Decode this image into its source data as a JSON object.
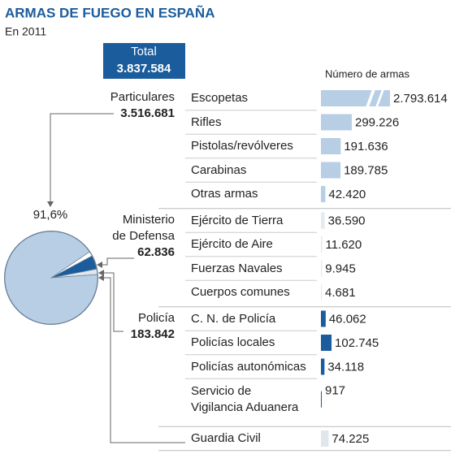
{
  "title": "ARMAS DE FUEGO EN ESPAÑA",
  "subtitle": "En 2011",
  "chart_data": {
    "type": "pie-bars",
    "total": {
      "name": "Total",
      "value": 3837584,
      "value_label": "3.837.584"
    },
    "value_axis_label": "Número de armas",
    "pie_annotation": "91,6%",
    "xlim": [
      0,
      1260000
    ],
    "groups": [
      {
        "name": "Particulares",
        "total": 3516681,
        "total_label": "3.516.681",
        "color": "#b7cee4",
        "pie_color": "#b7cee4",
        "categories": [
          "Escopetas",
          "Rifles",
          "Pistolas/revólveres",
          "Carabinas",
          "Otras armas"
        ],
        "values": [
          2793614,
          299226,
          191636,
          189785,
          42420
        ],
        "value_labels": [
          "2.793.614",
          "299.226",
          "191.636",
          "189.785",
          "42.420"
        ]
      },
      {
        "name": "Ministerio\nde Defensa",
        "total": 62836,
        "total_label": "62.836",
        "color": "#e3eaf2",
        "pie_color": "#ffffff",
        "categories": [
          "Ejército de Tierra",
          "Ejército de Aire",
          "Fuerzas Navales",
          "Cuerpos comunes"
        ],
        "values": [
          36590,
          11620,
          9945,
          4681
        ],
        "value_labels": [
          "36.590",
          "11.620",
          "9.945",
          "4.681"
        ]
      },
      {
        "name": "Policía",
        "total": 183842,
        "total_label": "183.842",
        "color": "#1b5c9c",
        "pie_color": "#1b5c9c",
        "categories": [
          "C. N. de Policía",
          "Policías locales",
          "Policías autonómicas",
          "Servicio de\nVigilancia Aduanera"
        ],
        "values": [
          46062,
          102745,
          34118,
          917
        ],
        "value_labels": [
          "46.062",
          "102.745",
          "34.118",
          "917"
        ]
      },
      {
        "color": "#e0e6ec",
        "pie_color": "#e0e6ec",
        "categories": [
          "Guardia Civil"
        ],
        "values": [
          74225
        ],
        "value_labels": [
          "74.225"
        ]
      }
    ]
  }
}
